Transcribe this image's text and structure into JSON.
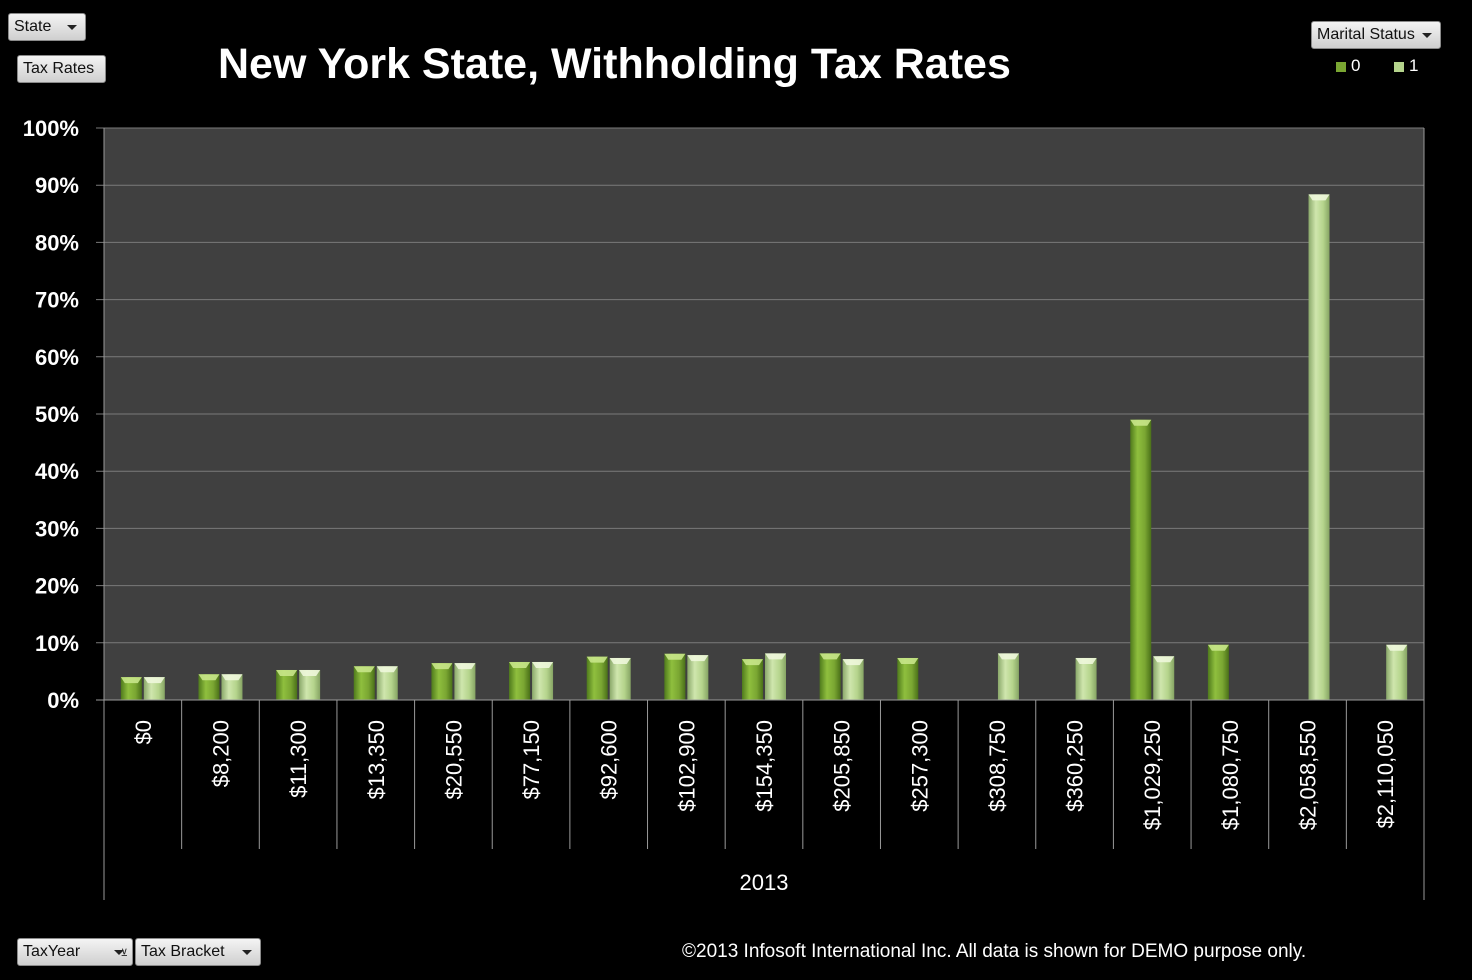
{
  "pivot_fields": {
    "state": "State",
    "tax_rates": "Tax Rates",
    "marital_status": "Marital Status",
    "tax_year": "TaxYear",
    "tax_bracket": "Tax Bracket"
  },
  "footer": "©2013 Infosoft International Inc. All data is shown for DEMO purpose only.",
  "colors": {
    "background": "#000000",
    "plot_area": "#404040",
    "series_0": "#7aa632",
    "series_1": "#b5d48c",
    "gridline": "#7a7a7a"
  },
  "chart_data": {
    "type": "bar",
    "title": "New York State, Withholding Tax Rates",
    "group_label": "2013",
    "categories": [
      "$0",
      "$8,200",
      "$11,300",
      "$13,350",
      "$20,550",
      "$77,150",
      "$92,600",
      "$102,900",
      "$154,350",
      "$205,850",
      "$257,300",
      "$308,750",
      "$360,250",
      "$1,029,250",
      "$1,080,750",
      "$2,058,550",
      "$2,110,050"
    ],
    "series": [
      {
        "name": "0",
        "values": [
          4,
          4.5,
          5.25,
          5.9,
          6.45,
          6.65,
          7.58,
          8.08,
          7.15,
          8.15,
          7.35,
          null,
          null,
          49,
          9.65,
          null,
          null
        ]
      },
      {
        "name": "1",
        "values": [
          4,
          4.5,
          5.25,
          5.9,
          6.45,
          6.65,
          7.35,
          7.85,
          8.15,
          7.15,
          null,
          8.15,
          7.35,
          7.65,
          null,
          88.4,
          9.65
        ]
      }
    ],
    "ylim": [
      0,
      100
    ],
    "y_ticks": [
      "0%",
      "10%",
      "20%",
      "30%",
      "40%",
      "50%",
      "60%",
      "70%",
      "80%",
      "90%",
      "100%"
    ],
    "grid": true,
    "legend": "top-right"
  }
}
